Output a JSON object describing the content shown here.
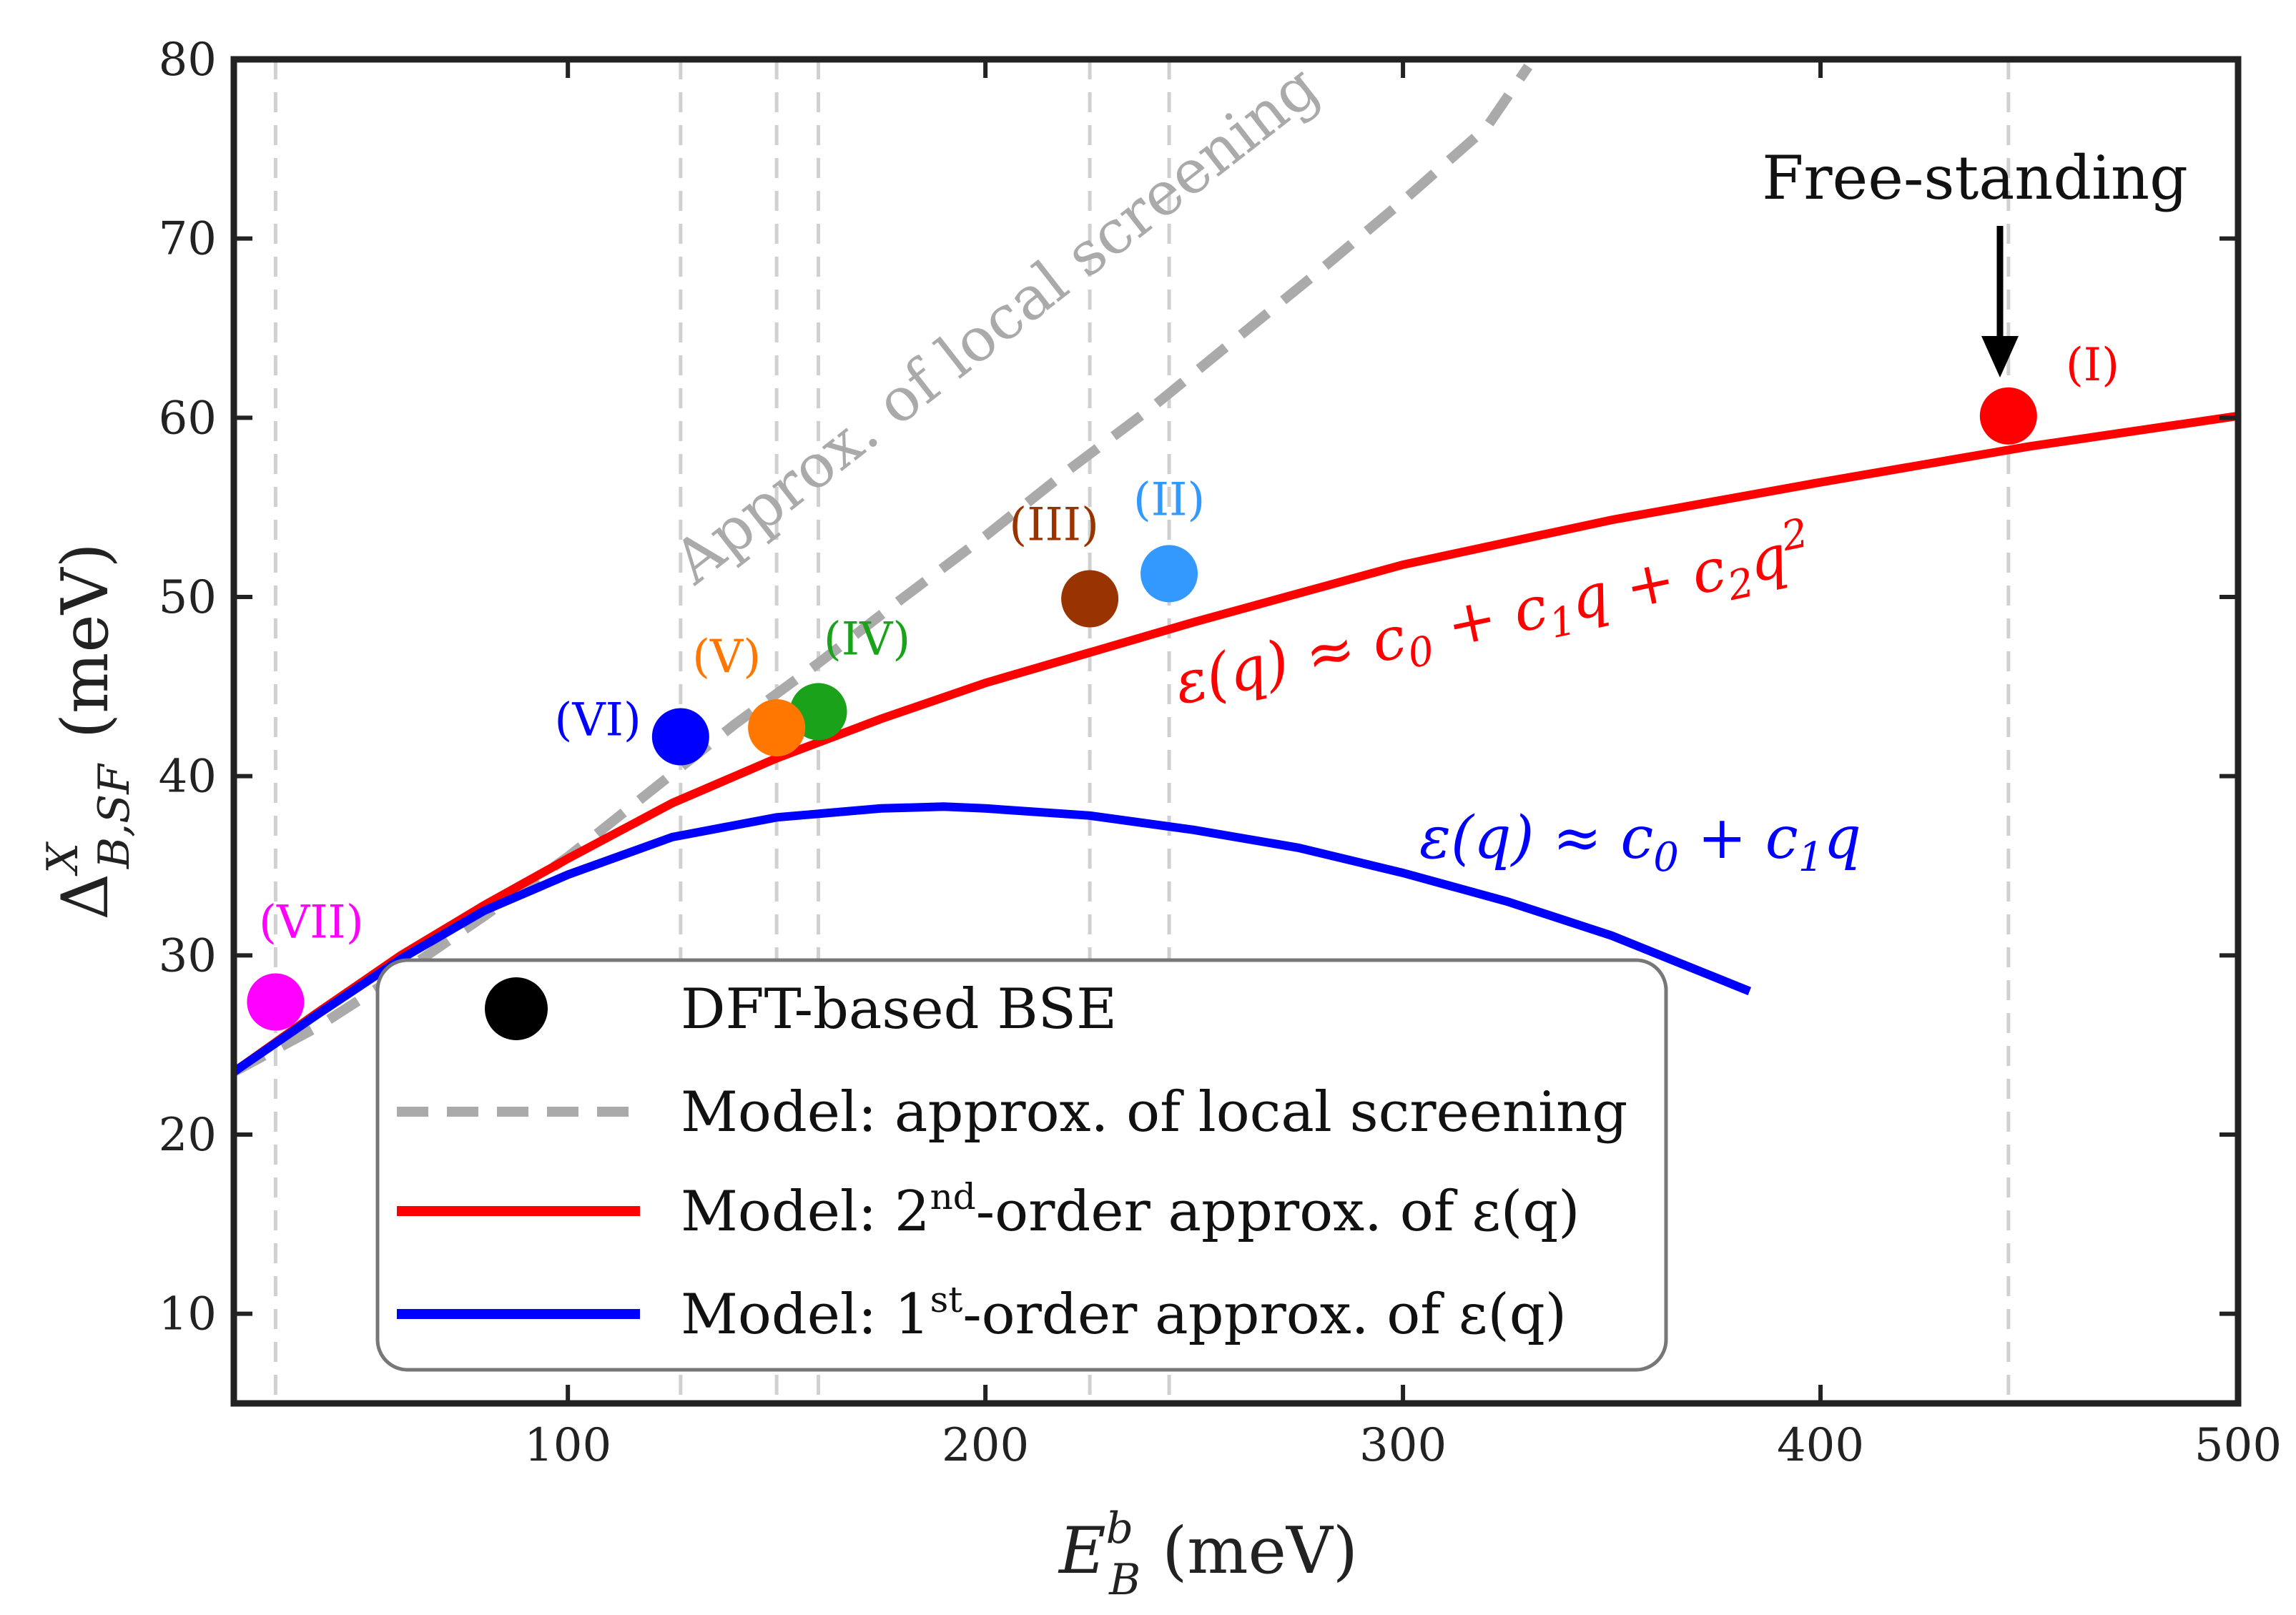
{
  "chart_data": {
    "type": "scatter",
    "xlabel_main": "E",
    "xlabel_sup": "b",
    "xlabel_sub": "B",
    "xlabel_unit": "(meV)",
    "ylabel_main": "Δ",
    "ylabel_sup": "X",
    "ylabel_sub": "B,SF",
    "ylabel_unit": "(meV)",
    "xlim": [
      20,
      500
    ],
    "ylim": [
      5,
      80
    ],
    "xticks": [
      100,
      200,
      300,
      400,
      500
    ],
    "yticks": [
      10,
      20,
      30,
      40,
      50,
      60,
      70,
      80
    ],
    "vlines": [
      30,
      127,
      150,
      160,
      225,
      244,
      445
    ],
    "points": [
      {
        "label": "(I)",
        "x": 445,
        "y": 60.1,
        "color": "#ff0000"
      },
      {
        "label": "(II)",
        "x": 244,
        "y": 51.3,
        "color": "#3399ff"
      },
      {
        "label": "(III)",
        "x": 225,
        "y": 49.9,
        "color": "#993300"
      },
      {
        "label": "(IV)",
        "x": 160,
        "y": 43.6,
        "color": "#1aa31a"
      },
      {
        "label": "(V)",
        "x": 150,
        "y": 42.7,
        "color": "#ff7700"
      },
      {
        "label": "(VI)",
        "x": 127,
        "y": 42.2,
        "color": "#0000ff"
      },
      {
        "label": "(VII)",
        "x": 30,
        "y": 27.4,
        "color": "#ff00ff"
      }
    ],
    "series": [
      {
        "name": "Model: approx. of local screening",
        "style": "dashed",
        "color": "#aaaaaa",
        "x": [
          20,
          40,
          60,
          80,
          100,
          120,
          140,
          160,
          180,
          200,
          220,
          240,
          260,
          280,
          300,
          320,
          330
        ],
        "y": [
          23.5,
          26.0,
          29.0,
          32.2,
          35.5,
          39.2,
          42.9,
          46.3,
          49.9,
          53.4,
          57.1,
          60.6,
          64.4,
          68.2,
          72.1,
          76.2,
          79.6
        ]
      },
      {
        "name": "Model: 2nd-order approx. of ε(q)",
        "style": "solid",
        "color": "#ff0000",
        "x": [
          20,
          40,
          60,
          80,
          100,
          125,
          150,
          175,
          200,
          250,
          300,
          350,
          400,
          450,
          500
        ],
        "y": [
          23.5,
          26.8,
          30.0,
          32.8,
          35.4,
          38.5,
          41.0,
          43.2,
          45.2,
          48.6,
          51.8,
          54.3,
          56.4,
          58.4,
          60.1
        ]
      },
      {
        "name": "Model: 1st-order approx. of ε(q)",
        "style": "solid",
        "color": "#0000ff",
        "x": [
          20,
          40,
          60,
          80,
          100,
          125,
          150,
          175,
          190,
          200,
          225,
          250,
          275,
          300,
          325,
          350,
          383
        ],
        "y": [
          23.5,
          26.7,
          29.8,
          32.5,
          34.5,
          36.6,
          37.7,
          38.2,
          38.3,
          38.2,
          37.8,
          37.0,
          36.0,
          34.6,
          33.0,
          31.1,
          28.0
        ]
      }
    ],
    "equations": {
      "red": [
        "ε(",
        "q",
        ") ≈ ",
        "c",
        "0",
        " + ",
        "c",
        "1",
        "q",
        " + ",
        "c",
        "2",
        "q",
        "2"
      ],
      "blue": [
        "ε(",
        "q",
        ") ≈ ",
        "c",
        "0",
        " + ",
        "c",
        "1",
        "q"
      ]
    },
    "annotations": {
      "free_standing": "Free-standing",
      "local_screening": "Approx. of local screening"
    },
    "legend": {
      "position": "lower-left",
      "entries": [
        {
          "pre": "DFT-based BSE",
          "sup": "",
          "post": ""
        },
        {
          "pre": "Model: approx. of local screening",
          "sup": "",
          "post": ""
        },
        {
          "pre": "Model: 2",
          "sup": "nd",
          "post": "-order approx. of ε(q)"
        },
        {
          "pre": "Model: 1",
          "sup": "st",
          "post": "-order approx. of ε(q)"
        }
      ]
    }
  }
}
